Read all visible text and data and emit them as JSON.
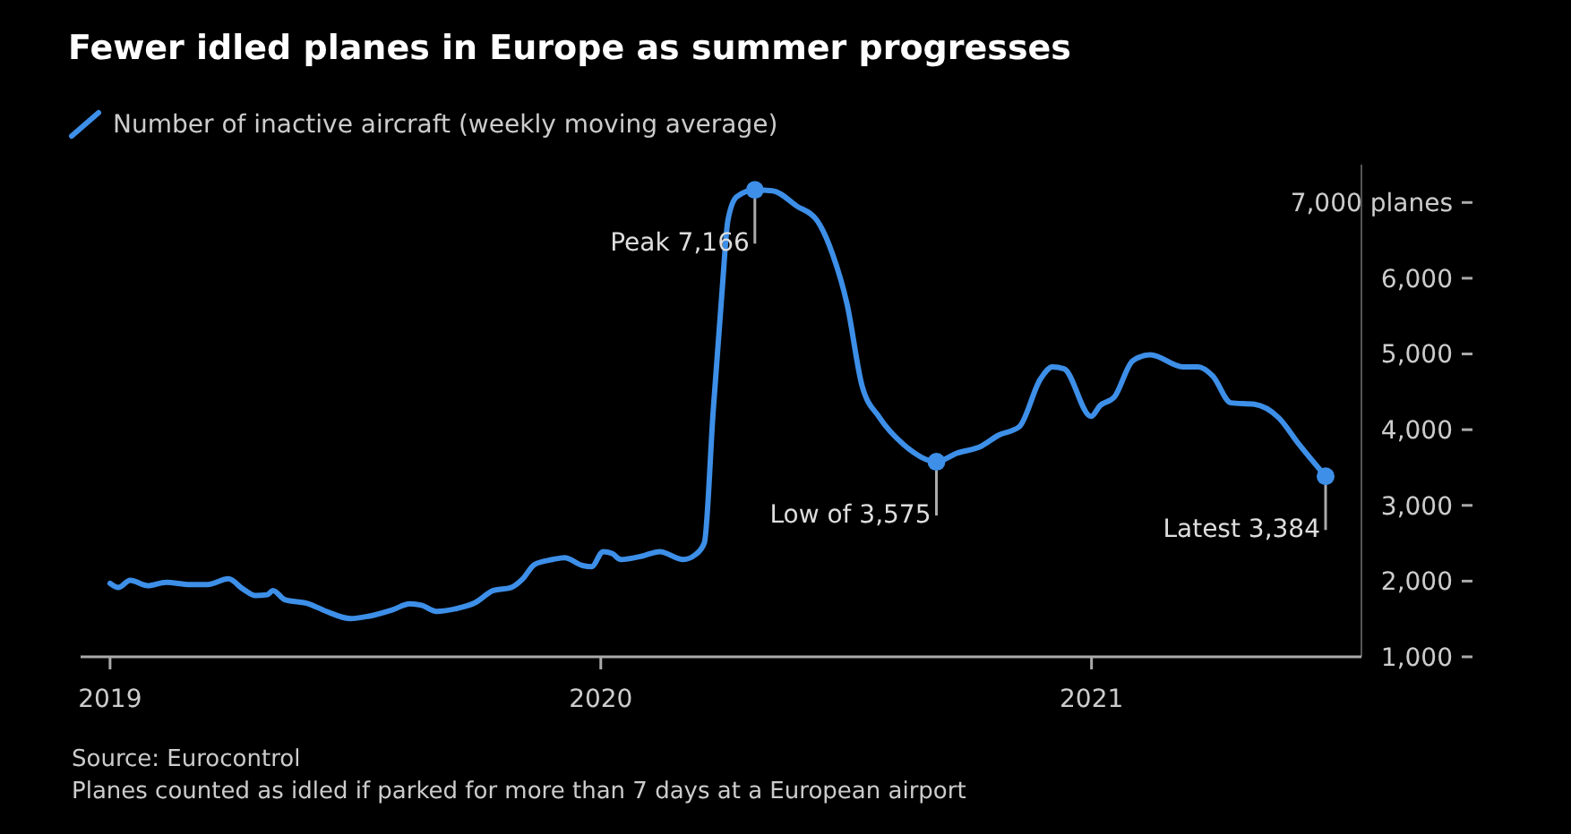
{
  "chart_data": {
    "type": "line",
    "title": "Fewer idled planes in Europe as summer progresses",
    "series": [
      {
        "name": "Number of inactive aircraft (weekly moving average)",
        "color": "#3d8fe8",
        "x": [
          2019.0,
          2019.017,
          2019.041,
          2019.077,
          2019.114,
          2019.163,
          2019.199,
          2019.241,
          2019.272,
          2019.296,
          2019.32,
          2019.332,
          2019.356,
          2019.405,
          2019.441,
          2019.49,
          2019.526,
          2019.575,
          2019.611,
          2019.635,
          2019.665,
          2019.708,
          2019.744,
          2019.781,
          2019.817,
          2019.841,
          2019.865,
          2019.902,
          2019.926,
          2019.963,
          2019.981,
          2020.005,
          2020.023,
          2020.041,
          2020.084,
          2020.12,
          2020.168,
          2020.193,
          2020.211,
          2020.229,
          2020.247,
          2020.259,
          2020.277,
          2020.314,
          2020.35,
          2020.399,
          2020.441,
          2020.472,
          2020.502,
          2020.532,
          2020.568,
          2020.617,
          2020.684,
          2020.726,
          2020.775,
          2020.81,
          2020.853,
          2020.896,
          2020.92,
          2020.944,
          2020.999,
          2021.017,
          2021.047,
          2021.084,
          2021.12,
          2021.186,
          2021.217,
          2021.247,
          2021.284,
          2021.332,
          2021.381,
          2021.423,
          2021.477
        ],
        "values": [
          1970,
          1915,
          2010,
          1940,
          1985,
          1955,
          1955,
          2030,
          1890,
          1810,
          1820,
          1875,
          1755,
          1700,
          1600,
          1505,
          1535,
          1620,
          1700,
          1680,
          1600,
          1640,
          1715,
          1875,
          1915,
          2030,
          2220,
          2285,
          2310,
          2205,
          2190,
          2390,
          2365,
          2285,
          2330,
          2390,
          2285,
          2350,
          2505,
          4240,
          5815,
          6760,
          7075,
          7166,
          7155,
          6955,
          6760,
          6325,
          5655,
          4590,
          4160,
          3805,
          3575,
          3690,
          3780,
          3925,
          4040,
          4670,
          4830,
          4805,
          4175,
          4315,
          4435,
          4910,
          4990,
          4830,
          4830,
          4710,
          4355,
          4335,
          4160,
          3805,
          3384
        ]
      }
    ],
    "xlim": [
      2018.94,
      2021.55
    ],
    "xticks": [
      {
        "value": 2019,
        "label": "2019"
      },
      {
        "value": 2020,
        "label": "2020"
      },
      {
        "value": 2021,
        "label": "2021"
      }
    ],
    "ylim": [
      1000,
      7500
    ],
    "yticks": [
      {
        "value": 1000,
        "label": "1,000"
      },
      {
        "value": 2000,
        "label": "2,000"
      },
      {
        "value": 3000,
        "label": "3,000"
      },
      {
        "value": 4000,
        "label": "4,000"
      },
      {
        "value": 5000,
        "label": "5,000"
      },
      {
        "value": 6000,
        "label": "6,000"
      },
      {
        "value": 7000,
        "label": "7,000 planes"
      }
    ],
    "annotations": [
      {
        "text": "Peak 7,166",
        "x": 2020.314,
        "y": 7166
      },
      {
        "text": "Low of 3,575",
        "x": 2020.684,
        "y": 3575
      },
      {
        "text": "Latest 3,384",
        "x": 2021.477,
        "y": 3384
      },
      "Source: Eurocontrol",
      "Planes counted as idled if parked for more than 7 days at a European airport"
    ],
    "legend": "top left",
    "grid": false,
    "marker": "none",
    "line_style": "solid"
  }
}
